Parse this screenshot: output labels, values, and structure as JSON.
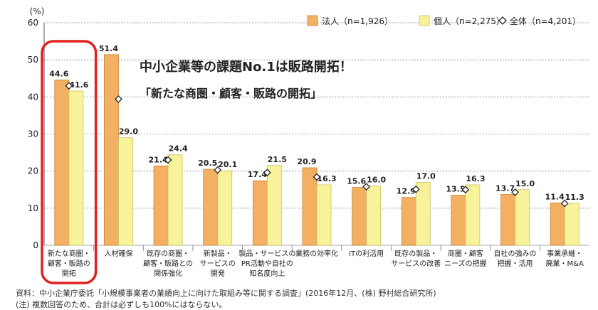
{
  "chart_data": {
    "type": "bar",
    "ylabel": "(%)",
    "ylim": [
      0,
      60
    ],
    "yticks": [
      "0",
      "10",
      "20",
      "30",
      "40",
      "50",
      "60"
    ],
    "categories": [
      [
        "新たな商圏・",
        "顧客・販路の",
        "開拓"
      ],
      [
        "人材確保"
      ],
      [
        "既存の商圏・",
        "顧客・販路との",
        "関係強化"
      ],
      [
        "新製品・",
        "サービスの",
        "開発"
      ],
      [
        "製品・サービスの",
        "PR活動や自社の",
        "知名度向上"
      ],
      [
        "業務の効率化"
      ],
      [
        "ITの利活用"
      ],
      [
        "既存の製品・",
        "サービスの改善"
      ],
      [
        "商圏・顧客",
        "ニーズの把握"
      ],
      [
        "自社の強みの",
        "把握・活用"
      ],
      [
        "事業承継・",
        "廃業・M&A"
      ]
    ],
    "series": [
      {
        "name": "法人（n=1,926）",
        "color": "#f4b062",
        "stroke": "#c9822e",
        "values": [
          44.6,
          51.4,
          21.4,
          20.5,
          17.4,
          20.9,
          15.6,
          12.9,
          13.5,
          13.7,
          11.4
        ],
        "labels": [
          "44.6",
          "51.4",
          "21.4",
          "20.5",
          "17.4",
          "20.9",
          "15.6",
          "12.9",
          "13.5",
          "13.7",
          "11.4"
        ]
      },
      {
        "name": "個人（n=2,275）",
        "color": "#f8f29a",
        "stroke": "#c9c064",
        "values": [
          41.6,
          29.0,
          24.4,
          20.1,
          21.5,
          16.3,
          16.0,
          17.0,
          16.3,
          15.0,
          11.3
        ],
        "labels": [
          "41.6",
          "29.0",
          "24.4",
          "20.1",
          "21.5",
          "16.3",
          "16.0",
          "17.0",
          "16.3",
          "15.0",
          "11.3"
        ]
      },
      {
        "name": "全体（n=4,201）",
        "marker": "diamond",
        "values": [
          43.0,
          39.4,
          23.0,
          20.3,
          19.6,
          18.4,
          15.8,
          15.1,
          15.0,
          14.3,
          11.3
        ]
      }
    ],
    "legend_position": "top-right",
    "highlight_category": 0,
    "highlight_color": "#e02020"
  },
  "headline": {
    "line1": "中小企業等の課題No.1は販路開拓！",
    "line2": "「新たな商圏・顧客・販路の開拓」"
  },
  "source": {
    "line1": "資料：中小企業庁委託「小規模事業者の業績向上に向けた取組み等に関する調査」(2016年12月、(株) 野村総合研究所)",
    "line2": "(注) 複数回答のため、合計は必ずしも100%にはならない。"
  }
}
